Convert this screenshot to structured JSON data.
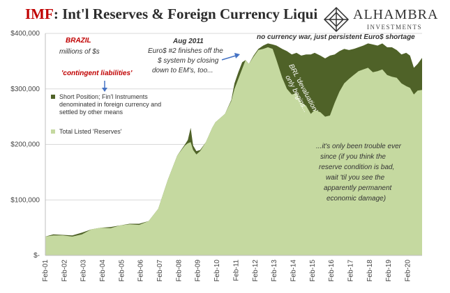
{
  "header": {
    "title_prefix": "IMF",
    "title_rest": ": Int'l Reserves & Foreign Currency Liquidi",
    "logo_name": "ALHAMBRA",
    "logo_sub": "INVESTMENTS"
  },
  "colors": {
    "reserves": "#c5d9a0",
    "short_position": "#4f6228",
    "accent_red": "#c00000",
    "arrow": "#4472c4"
  },
  "chart_data": {
    "type": "area",
    "title": "IMF: Int'l Reserves & Foreign Currency Liquidi",
    "ylim": [
      0,
      400000
    ],
    "yticks": [
      0,
      100000,
      200000,
      300000,
      400000
    ],
    "ytick_labels": [
      "$-",
      "$100,000",
      "$200,000",
      "$300,000",
      "$400,000"
    ],
    "x_start": 2001.083,
    "x_end": 2020.833,
    "xtick_labels": [
      "Feb-01",
      "Feb-02",
      "Feb-03",
      "Feb-04",
      "Feb-05",
      "Feb-06",
      "Feb-07",
      "Feb-08",
      "Feb-09",
      "Feb-10",
      "Feb-11",
      "Feb-12",
      "Feb-13",
      "Feb-14",
      "Feb-15",
      "Feb-16",
      "Feb-17",
      "Feb-18",
      "Feb-19",
      "Feb-20"
    ],
    "x": [
      2001.083,
      2001.5,
      2002.0,
      2002.5,
      2003.0,
      2003.5,
      2004.0,
      2004.5,
      2005.0,
      2005.5,
      2006.0,
      2006.5,
      2007.0,
      2007.5,
      2008.0,
      2008.4,
      2008.55,
      2008.7,
      2008.83,
      2009.0,
      2009.2,
      2009.5,
      2009.83,
      2010.0,
      2010.5,
      2010.83,
      2011.0,
      2011.2,
      2011.4,
      2011.58,
      2011.75,
      2012.0,
      2012.25,
      2012.5,
      2012.75,
      2013.0,
      2013.2,
      2013.5,
      2013.75,
      2014.0,
      2014.25,
      2014.5,
      2014.75,
      2015.0,
      2015.2,
      2015.5,
      2015.75,
      2016.0,
      2016.25,
      2016.5,
      2016.75,
      2017.0,
      2017.25,
      2017.5,
      2017.75,
      2018.0,
      2018.25,
      2018.5,
      2018.75,
      2019.0,
      2019.25,
      2019.5,
      2019.75,
      2020.0,
      2020.2,
      2020.4,
      2020.6,
      2020.833
    ],
    "series": [
      {
        "name": "Short Position; Fin'l Instruments denominated in foreign currency and settled by other means",
        "values": [
          34000,
          38000,
          37000,
          36000,
          41000,
          47000,
          50000,
          51000,
          54000,
          57000,
          57000,
          62000,
          84000,
          136000,
          180000,
          200000,
          208000,
          230000,
          198000,
          188000,
          190000,
          204000,
          230000,
          240000,
          255000,
          280000,
          310000,
          330000,
          348000,
          352000,
          345000,
          360000,
          372000,
          378000,
          382000,
          380000,
          378000,
          372000,
          368000,
          362000,
          365000,
          360000,
          362000,
          362000,
          365000,
          360000,
          355000,
          360000,
          362000,
          368000,
          372000,
          370000,
          372000,
          375000,
          378000,
          382000,
          380000,
          378000,
          382000,
          375000,
          375000,
          370000,
          362000,
          365000,
          360000,
          338000,
          345000,
          356000
        ]
      },
      {
        "name": "Total Listed 'Reserves'",
        "values": [
          34000,
          36000,
          36000,
          34000,
          38000,
          47000,
          50000,
          49000,
          54000,
          56000,
          55000,
          62000,
          84000,
          136000,
          180000,
          198000,
          202000,
          204000,
          190000,
          182000,
          188000,
          204000,
          230000,
          240000,
          255000,
          278000,
          300000,
          318000,
          336000,
          352000,
          345000,
          358000,
          370000,
          372000,
          375000,
          372000,
          352000,
          320000,
          300000,
          290000,
          292000,
          275000,
          270000,
          255000,
          262000,
          258000,
          250000,
          252000,
          275000,
          295000,
          310000,
          318000,
          325000,
          332000,
          335000,
          338000,
          330000,
          332000,
          335000,
          325000,
          322000,
          320000,
          310000,
          305000,
          302000,
          290000,
          297000,
          298000
        ]
      }
    ],
    "legend": [
      "Short Position; Fin'l Instruments denominated in foreign currency and settled by other means",
      "Total Listed 'Reserves'"
    ],
    "annotations": {
      "brazil": "BRAZIL",
      "units": "millions of $s",
      "contingent": "'contingent liabilities'",
      "aug_title": "Aug 2011",
      "aug_line1": "Euro$ #2 finishes off the",
      "aug_line2": "$ system by closing",
      "aug_line3": "down to EM's, too...",
      "shortage": "no currency war, just persistent Euro$ shortage",
      "brl_line1": "BRL 'devaluation'",
      "brl_line2": "only begins...",
      "trouble_line1": "...it's only been trouble ever",
      "trouble_line2": "since (if you think the",
      "trouble_line3": "reserve condition is bad,",
      "trouble_line4": "wait 'til you see the",
      "trouble_line5": "apparently permanent",
      "trouble_line6": "economic damage)"
    }
  }
}
